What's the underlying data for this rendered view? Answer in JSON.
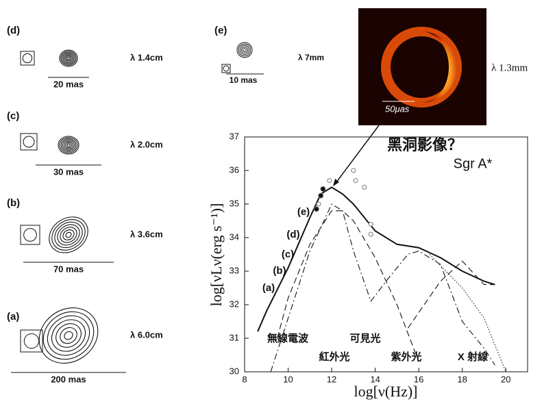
{
  "panels": [
    {
      "label": "(d)",
      "wavelength": "λ 1.4cm",
      "scale": "20 mas"
    },
    {
      "label": "(c)",
      "wavelength": "λ 2.0cm",
      "scale": "30 mas"
    },
    {
      "label": "(b)",
      "wavelength": "λ 3.6cm",
      "scale": "70 mas"
    },
    {
      "label": "(a)",
      "wavelength": "λ 6.0cm",
      "scale": "200 mas"
    }
  ],
  "panel_e": {
    "label": "(e)",
    "wavelength": "λ 7mm",
    "scale": "10 mas"
  },
  "image": {
    "wavelength": "λ 1.3mm",
    "scale": "50μas"
  },
  "chart_data": {
    "type": "line",
    "title": "黑洞影像？",
    "subtitle": "Sgr A*",
    "x_label": "log[ν(Hz)]",
    "y_label": "log[νLν(erg s⁻¹)]",
    "xlim": [
      8,
      21
    ],
    "ylim": [
      30,
      37
    ],
    "xticks": [
      8,
      10,
      12,
      14,
      16,
      18,
      20
    ],
    "yticks": [
      30,
      31,
      32,
      33,
      34,
      35,
      36,
      37
    ],
    "color": "#111111",
    "series": [
      {
        "style": "solid",
        "x": [
          8.6,
          9,
          10,
          11,
          11.5,
          12,
          12.5,
          13,
          14,
          15,
          16,
          17,
          18,
          19,
          19.5
        ],
        "values": [
          31.2,
          31.8,
          33.1,
          34.6,
          35.3,
          35.5,
          35.3,
          35.0,
          34.2,
          33.8,
          33.7,
          33.4,
          33.0,
          32.7,
          32.6
        ]
      },
      {
        "style": "dashed",
        "x": [
          9.5,
          10,
          11,
          12,
          12.5,
          13,
          14,
          15,
          16
        ],
        "values": [
          31.0,
          32.2,
          33.8,
          34.8,
          34.8,
          34.5,
          33.4,
          32.0,
          30.3
        ]
      },
      {
        "style": "dashdot",
        "x": [
          9.2,
          10,
          11,
          12,
          12.5,
          13,
          13.8,
          14.5,
          15.5,
          16,
          17,
          18,
          19,
          19.5
        ],
        "values": [
          30.0,
          31.6,
          33.6,
          35.0,
          34.8,
          33.6,
          32.1,
          32.7,
          33.5,
          33.6,
          33.2,
          31.5,
          30.7,
          30.2
        ]
      },
      {
        "style": "dashed",
        "x": [
          15.5,
          17,
          18,
          19,
          19.5
        ],
        "values": [
          31.3,
          32.7,
          33.3,
          32.6,
          32.6
        ]
      },
      {
        "style": "dotted",
        "x": [
          16.5,
          18,
          19,
          20
        ],
        "values": [
          33.5,
          32.5,
          31.6,
          30.0
        ]
      },
      {
        "style": "filled",
        "x": [
          11.3,
          11.5,
          11.6
        ],
        "values": [
          34.85,
          35.25,
          35.45
        ]
      },
      {
        "style": "open",
        "x": [
          13,
          13.1,
          13.5,
          13.8,
          13.8,
          11.9,
          11.4
        ],
        "values": [
          36.0,
          35.7,
          35.5,
          34.4,
          34.1,
          35.7,
          35.0
        ]
      }
    ],
    "band_labels": [
      "無線電波",
      "紅外光",
      "可見光",
      "紫外光",
      "X 射線"
    ],
    "point_labels": [
      "(a)",
      "(b)",
      "(c)",
      "(d)",
      "(e)"
    ]
  }
}
